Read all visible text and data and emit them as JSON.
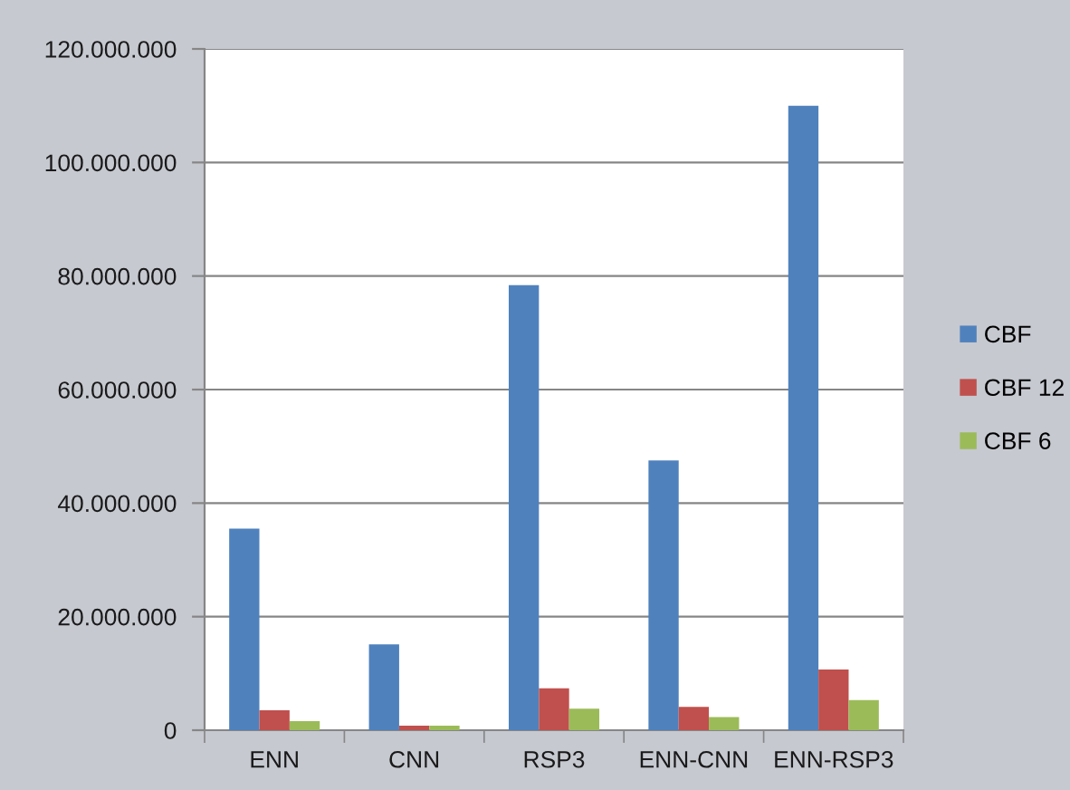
{
  "chart_data": {
    "type": "bar",
    "categories": [
      "ENN",
      "CNN",
      "RSP3",
      "ENN-CNN",
      "ENN-RSP3"
    ],
    "series": [
      {
        "name": "CBF",
        "color": "#4f81bd",
        "values": [
          35500000,
          15100000,
          78400000,
          47500000,
          110000000
        ]
      },
      {
        "name": "CBF 12",
        "color": "#c0504d",
        "values": [
          3500000,
          800000,
          7400000,
          4100000,
          10700000
        ]
      },
      {
        "name": "CBF 6",
        "color": "#9bbb59",
        "values": [
          1600000,
          800000,
          3800000,
          2300000,
          5300000
        ]
      }
    ],
    "ylim": [
      0,
      120000000
    ],
    "yticks": [
      0,
      {
        "value": 20000000,
        "label": "20.000.000"
      },
      {
        "value": 40000000,
        "label": "40.000.000"
      },
      {
        "value": 60000000,
        "label": "60.000.000"
      },
      {
        "value": 80000000,
        "label": "80.000.000"
      },
      {
        "value": 100000000,
        "label": "100.000.000"
      },
      {
        "value": 120000000,
        "label": "120.000.000"
      }
    ],
    "grid": "y",
    "legend": "right"
  }
}
